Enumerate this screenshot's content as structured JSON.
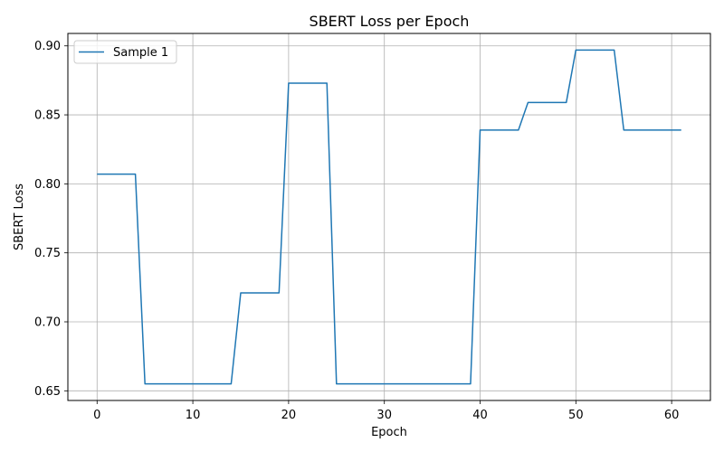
{
  "chart_data": {
    "type": "line",
    "title": "SBERT Loss per Epoch",
    "xlabel": "Epoch",
    "ylabel": "SBERT Loss",
    "xlim": [
      -3.05,
      64.05
    ],
    "ylim": [
      0.643,
      0.909
    ],
    "xticks": [
      0,
      10,
      20,
      30,
      40,
      50,
      60
    ],
    "yticks": [
      0.65,
      0.7,
      0.75,
      0.8,
      0.85,
      0.9
    ],
    "ytick_labels": [
      "0.65",
      "0.70",
      "0.75",
      "0.80",
      "0.85",
      "0.90"
    ],
    "grid": true,
    "legend_position": "upper-left",
    "series": [
      {
        "name": "Sample 1",
        "color": "#1f77b4",
        "x": [
          0,
          1,
          2,
          3,
          4,
          5,
          6,
          7,
          8,
          9,
          10,
          11,
          12,
          13,
          14,
          15,
          16,
          17,
          18,
          19,
          20,
          21,
          22,
          23,
          24,
          25,
          26,
          27,
          28,
          29,
          30,
          31,
          32,
          33,
          34,
          35,
          36,
          37,
          38,
          39,
          40,
          41,
          42,
          43,
          44,
          45,
          46,
          47,
          48,
          49,
          50,
          51,
          52,
          53,
          54,
          55,
          56,
          57,
          58,
          59,
          60,
          61
        ],
        "y": [
          0.807,
          0.807,
          0.807,
          0.807,
          0.807,
          0.655,
          0.655,
          0.655,
          0.655,
          0.655,
          0.655,
          0.655,
          0.655,
          0.655,
          0.655,
          0.721,
          0.721,
          0.721,
          0.721,
          0.721,
          0.873,
          0.873,
          0.873,
          0.873,
          0.873,
          0.655,
          0.655,
          0.655,
          0.655,
          0.655,
          0.655,
          0.655,
          0.655,
          0.655,
          0.655,
          0.655,
          0.655,
          0.655,
          0.655,
          0.655,
          0.839,
          0.839,
          0.839,
          0.839,
          0.839,
          0.859,
          0.859,
          0.859,
          0.859,
          0.859,
          0.897,
          0.897,
          0.897,
          0.897,
          0.897,
          0.839,
          0.839,
          0.839,
          0.839,
          0.839,
          0.839,
          0.839
        ]
      }
    ]
  }
}
